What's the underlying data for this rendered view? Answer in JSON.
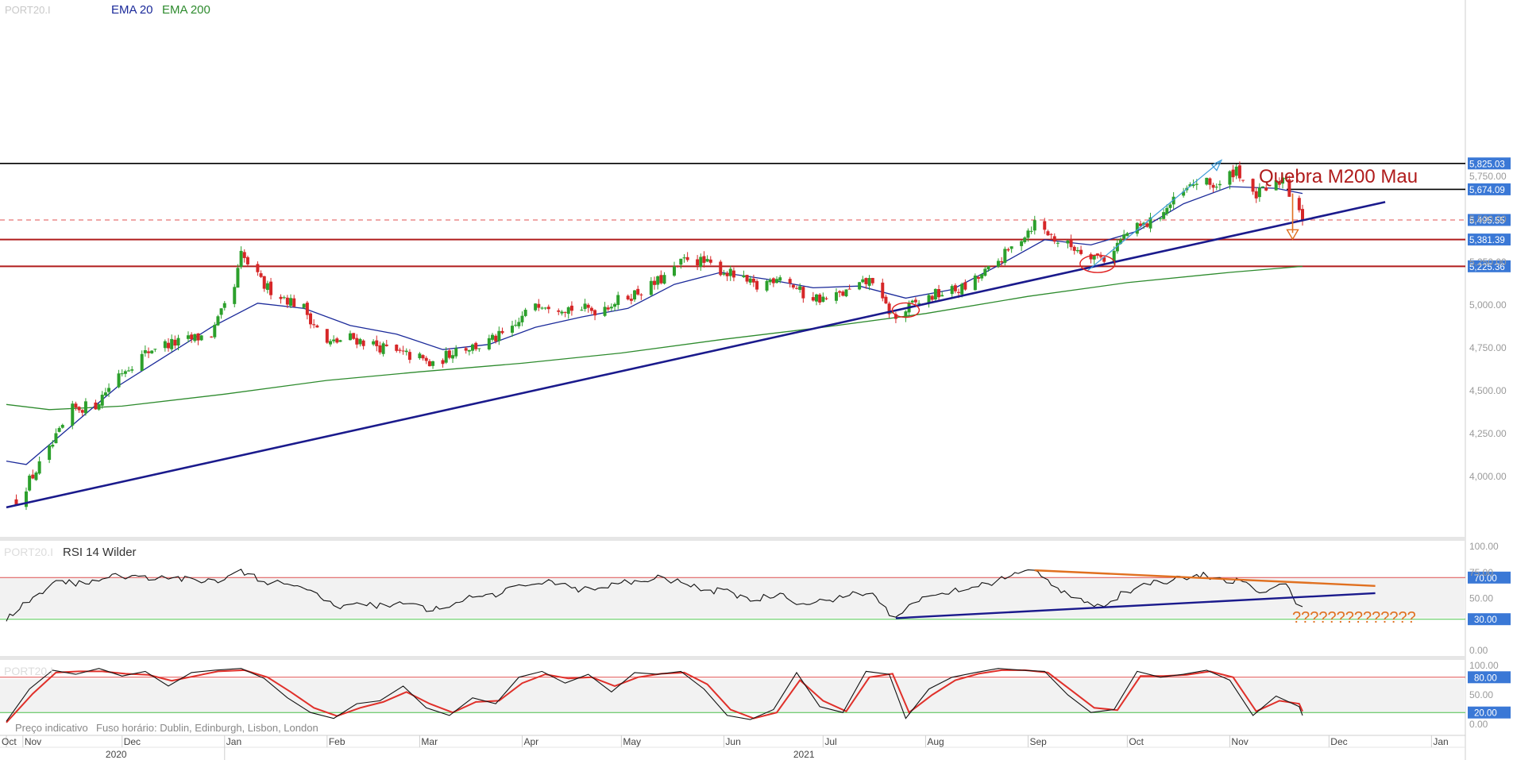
{
  "main": {
    "legend_symbol": "PORT20.I",
    "legend_ema20": "EMA 20",
    "legend_ema200": "EMA 200",
    "annotation_text": "Quebra M200 Mau"
  },
  "rsi": {
    "legend_symbol": "PORT20.I",
    "legend_label": "RSI 14 Wilder",
    "question_text": "??????????????"
  },
  "stoch": {
    "legend_symbol": "PORT20.I"
  },
  "footer": {
    "indicative": "Preço indicativo",
    "timezone": "Fuso horário: Dublin, Edinburgh, Lisbon, London"
  },
  "colors": {
    "up": "#2ca02c",
    "down": "#d62728",
    "ema20": "#1b2a9a",
    "ema200": "#2e8b2e",
    "trendline": "#1a1a8c",
    "support": "#b01c1c",
    "orange": "#e07020",
    "label_bg": "#3a78d6"
  },
  "chart_data": [
    {
      "type": "candlestick",
      "title": "",
      "ylim": [
        3800,
        5860
      ],
      "yticks": [
        "4,000.00",
        "4,250.00",
        "4,500.00",
        "4,750.00",
        "5,000.00",
        "5,250.00",
        "5,500.00",
        "5,750.00"
      ],
      "price_labels": [
        {
          "label": "5,825.03",
          "value": 5825.03,
          "style": "black"
        },
        {
          "label": "5,674.09",
          "value": 5674.09,
          "style": "black"
        },
        {
          "label": "5,495.55",
          "value": 5495.55,
          "style": "dashed-red"
        },
        {
          "label": "5,381.39",
          "value": 5381.39,
          "style": "red"
        },
        {
          "label": "5,225.36",
          "value": 5225.36,
          "style": "red"
        }
      ],
      "x_months": [
        "Oct",
        "Nov",
        "Dec",
        "Jan",
        "Feb",
        "Mar",
        "Apr",
        "May",
        "Jun",
        "Jul",
        "Aug",
        "Sep",
        "Oct",
        "Nov",
        "Dec",
        "Jan"
      ],
      "x_years": [
        "2020",
        "2021"
      ],
      "close_path": [
        [
          "2020-10-30",
          3860
        ],
        [
          "2020-11-09",
          4150
        ],
        [
          "2020-11-16",
          4390
        ],
        [
          "2020-11-23",
          4420
        ],
        [
          "2020-11-30",
          4600
        ],
        [
          "2020-12-11",
          4760
        ],
        [
          "2020-12-18",
          4780
        ],
        [
          "2020-12-28",
          4830
        ],
        [
          "2021-01-04",
          5100
        ],
        [
          "2021-01-06",
          5290
        ],
        [
          "2021-01-13",
          5110
        ],
        [
          "2021-01-25",
          4980
        ],
        [
          "2021-02-01",
          4770
        ],
        [
          "2021-02-08",
          4810
        ],
        [
          "2021-02-15",
          4770
        ],
        [
          "2021-02-22",
          4720
        ],
        [
          "2021-03-01",
          4690
        ],
        [
          "2021-03-05",
          4640
        ],
        [
          "2021-03-12",
          4750
        ],
        [
          "2021-03-19",
          4760
        ],
        [
          "2021-03-29",
          4850
        ],
        [
          "2021-04-05",
          5020
        ],
        [
          "2021-04-16",
          4980
        ],
        [
          "2021-04-23",
          4970
        ],
        [
          "2021-05-03",
          5050
        ],
        [
          "2021-05-10",
          5110
        ],
        [
          "2021-05-17",
          5200
        ],
        [
          "2021-05-21",
          5280
        ],
        [
          "2021-05-28",
          5230
        ],
        [
          "2021-06-04",
          5170
        ],
        [
          "2021-06-11",
          5100
        ],
        [
          "2021-06-18",
          5180
        ],
        [
          "2021-06-25",
          5060
        ],
        [
          "2021-07-02",
          5030
        ],
        [
          "2021-07-09",
          5080
        ],
        [
          "2021-07-16",
          5150
        ],
        [
          "2021-07-19",
          5010
        ],
        [
          "2021-07-23",
          4920
        ],
        [
          "2021-07-28",
          5000
        ],
        [
          "2021-08-04",
          5060
        ],
        [
          "2021-08-13",
          5100
        ],
        [
          "2021-08-20",
          5200
        ],
        [
          "2021-08-27",
          5330
        ],
        [
          "2021-09-03",
          5480
        ],
        [
          "2021-09-10",
          5370
        ],
        [
          "2021-09-17",
          5320
        ],
        [
          "2021-09-24",
          5270
        ],
        [
          "2021-10-01",
          5420
        ],
        [
          "2021-10-08",
          5480
        ],
        [
          "2021-10-15",
          5600
        ],
        [
          "2021-10-22",
          5720
        ],
        [
          "2021-10-29",
          5690
        ],
        [
          "2021-11-03",
          5800
        ],
        [
          "2021-11-08",
          5630
        ],
        [
          "2021-11-15",
          5700
        ],
        [
          "2021-11-18",
          5760
        ],
        [
          "2021-11-19",
          5650
        ],
        [
          "2021-11-22",
          5570
        ],
        [
          "2021-11-23",
          5500
        ]
      ],
      "ema20": [
        [
          "2020-10-27",
          4090
        ],
        [
          "2020-11-02",
          4070
        ],
        [
          "2020-11-16",
          4300
        ],
        [
          "2020-11-30",
          4530
        ],
        [
          "2020-12-14",
          4700
        ],
        [
          "2020-12-28",
          4870
        ],
        [
          "2021-01-11",
          5010
        ],
        [
          "2021-01-25",
          4980
        ],
        [
          "2021-02-08",
          4880
        ],
        [
          "2021-02-22",
          4830
        ],
        [
          "2021-03-08",
          4740
        ],
        [
          "2021-03-22",
          4770
        ],
        [
          "2021-04-05",
          4870
        ],
        [
          "2021-04-19",
          4930
        ],
        [
          "2021-05-03",
          4980
        ],
        [
          "2021-05-17",
          5120
        ],
        [
          "2021-05-31",
          5190
        ],
        [
          "2021-06-14",
          5150
        ],
        [
          "2021-06-28",
          5100
        ],
        [
          "2021-07-12",
          5110
        ],
        [
          "2021-07-26",
          5040
        ],
        [
          "2021-08-09",
          5090
        ],
        [
          "2021-08-23",
          5230
        ],
        [
          "2021-09-06",
          5380
        ],
        [
          "2021-09-20",
          5350
        ],
        [
          "2021-10-04",
          5430
        ],
        [
          "2021-10-18",
          5590
        ],
        [
          "2021-11-01",
          5690
        ],
        [
          "2021-11-15",
          5680
        ],
        [
          "2021-11-23",
          5650
        ]
      ],
      "ema200": [
        [
          "2020-10-27",
          4420
        ],
        [
          "2020-11-09",
          4390
        ],
        [
          "2020-12-01",
          4410
        ],
        [
          "2021-01-01",
          4480
        ],
        [
          "2021-02-01",
          4560
        ],
        [
          "2021-03-01",
          4610
        ],
        [
          "2021-04-01",
          4660
        ],
        [
          "2021-05-01",
          4720
        ],
        [
          "2021-06-01",
          4800
        ],
        [
          "2021-07-01",
          4870
        ],
        [
          "2021-08-01",
          4950
        ],
        [
          "2021-09-01",
          5050
        ],
        [
          "2021-10-01",
          5130
        ],
        [
          "2021-11-01",
          5190
        ],
        [
          "2021-11-23",
          5225
        ]
      ],
      "trendline": [
        [
          "2020-10-27",
          3820
        ],
        [
          "2021-12-18",
          5600
        ]
      ],
      "blue_arrow": [
        [
          "2021-09-19",
          5200
        ],
        [
          "2021-10-29",
          5835
        ]
      ],
      "orange_arrow": [
        [
          "2021-11-20",
          5650
        ],
        [
          "2021-11-20",
          5420
        ]
      ],
      "circles": [
        [
          "2021-07-26",
          4970
        ],
        [
          "2021-09-22",
          5240
        ]
      ]
    },
    {
      "type": "line",
      "name": "RSI 14 Wilder",
      "ylim": [
        0,
        100
      ],
      "yticks": [
        "100.00",
        "75.00",
        "50.00",
        "0.00"
      ],
      "levels": [
        {
          "label": "70.00",
          "value": 70
        },
        {
          "label": "30.00",
          "value": 30
        }
      ],
      "values": [
        [
          "2020-10-27",
          28
        ],
        [
          "2020-11-06",
          55
        ],
        [
          "2020-11-13",
          67
        ],
        [
          "2020-11-20",
          64
        ],
        [
          "2020-11-27",
          70
        ],
        [
          "2020-12-04",
          72
        ],
        [
          "2020-12-11",
          68
        ],
        [
          "2020-12-18",
          71
        ],
        [
          "2020-12-25",
          65
        ],
        [
          "2021-01-01",
          68
        ],
        [
          "2021-01-06",
          78
        ],
        [
          "2021-01-13",
          66
        ],
        [
          "2021-01-22",
          62
        ],
        [
          "2021-01-29",
          55
        ],
        [
          "2021-02-05",
          40
        ],
        [
          "2021-02-12",
          44
        ],
        [
          "2021-02-19",
          43
        ],
        [
          "2021-02-26",
          45
        ],
        [
          "2021-03-05",
          38
        ],
        [
          "2021-03-12",
          46
        ],
        [
          "2021-03-19",
          52
        ],
        [
          "2021-03-26",
          55
        ],
        [
          "2021-04-02",
          62
        ],
        [
          "2021-04-09",
          68
        ],
        [
          "2021-04-16",
          60
        ],
        [
          "2021-04-23",
          58
        ],
        [
          "2021-04-30",
          64
        ],
        [
          "2021-05-07",
          66
        ],
        [
          "2021-05-14",
          70
        ],
        [
          "2021-05-21",
          63
        ],
        [
          "2021-05-28",
          58
        ],
        [
          "2021-06-04",
          55
        ],
        [
          "2021-06-11",
          48
        ],
        [
          "2021-06-18",
          55
        ],
        [
          "2021-06-25",
          45
        ],
        [
          "2021-07-02",
          48
        ],
        [
          "2021-07-09",
          53
        ],
        [
          "2021-07-16",
          55
        ],
        [
          "2021-07-23",
          32
        ],
        [
          "2021-07-30",
          47
        ],
        [
          "2021-08-06",
          55
        ],
        [
          "2021-08-13",
          58
        ],
        [
          "2021-08-20",
          64
        ],
        [
          "2021-08-27",
          72
        ],
        [
          "2021-09-03",
          77
        ],
        [
          "2021-09-10",
          60
        ],
        [
          "2021-09-17",
          50
        ],
        [
          "2021-09-24",
          42
        ],
        [
          "2021-10-01",
          56
        ],
        [
          "2021-10-08",
          63
        ],
        [
          "2021-10-15",
          68
        ],
        [
          "2021-10-22",
          73
        ],
        [
          "2021-10-29",
          70
        ],
        [
          "2021-11-05",
          66
        ],
        [
          "2021-11-12",
          56
        ],
        [
          "2021-11-18",
          64
        ],
        [
          "2021-11-23",
          42
        ]
      ],
      "support_line": [
        [
          "2021-07-23",
          31
        ],
        [
          "2021-12-15",
          55
        ]
      ],
      "resistance_line": [
        [
          "2021-09-03",
          77
        ],
        [
          "2021-12-15",
          62
        ]
      ]
    },
    {
      "type": "line",
      "name": "Stochastic",
      "ylim": [
        0,
        100
      ],
      "yticks": [
        "100.00",
        "50.00",
        "0.00"
      ],
      "levels": [
        {
          "label": "80.00",
          "value": 80
        },
        {
          "label": "20.00",
          "value": 20
        }
      ],
      "k": [
        [
          "2020-10-27",
          5
        ],
        [
          "2020-11-03",
          60
        ],
        [
          "2020-11-10",
          92
        ],
        [
          "2020-11-17",
          85
        ],
        [
          "2020-11-24",
          95
        ],
        [
          "2020-12-01",
          82
        ],
        [
          "2020-12-08",
          90
        ],
        [
          "2020-12-15",
          65
        ],
        [
          "2020-12-22",
          88
        ],
        [
          "2020-12-29",
          92
        ],
        [
          "2021-01-06",
          95
        ],
        [
          "2021-01-13",
          78
        ],
        [
          "2021-01-20",
          45
        ],
        [
          "2021-01-27",
          20
        ],
        [
          "2021-02-03",
          10
        ],
        [
          "2021-02-10",
          35
        ],
        [
          "2021-02-17",
          40
        ],
        [
          "2021-02-24",
          65
        ],
        [
          "2021-03-03",
          28
        ],
        [
          "2021-03-10",
          15
        ],
        [
          "2021-03-17",
          45
        ],
        [
          "2021-03-24",
          35
        ],
        [
          "2021-03-31",
          80
        ],
        [
          "2021-04-07",
          90
        ],
        [
          "2021-04-14",
          70
        ],
        [
          "2021-04-21",
          85
        ],
        [
          "2021-04-28",
          55
        ],
        [
          "2021-05-05",
          88
        ],
        [
          "2021-05-12",
          85
        ],
        [
          "2021-05-19",
          90
        ],
        [
          "2021-05-26",
          60
        ],
        [
          "2021-06-02",
          15
        ],
        [
          "2021-06-09",
          8
        ],
        [
          "2021-06-16",
          25
        ],
        [
          "2021-06-23",
          88
        ],
        [
          "2021-06-30",
          30
        ],
        [
          "2021-07-07",
          20
        ],
        [
          "2021-07-14",
          90
        ],
        [
          "2021-07-21",
          85
        ],
        [
          "2021-07-26",
          10
        ],
        [
          "2021-08-02",
          60
        ],
        [
          "2021-08-09",
          80
        ],
        [
          "2021-08-16",
          88
        ],
        [
          "2021-08-23",
          95
        ],
        [
          "2021-08-30",
          92
        ],
        [
          "2021-09-06",
          90
        ],
        [
          "2021-09-13",
          50
        ],
        [
          "2021-09-20",
          20
        ],
        [
          "2021-09-27",
          25
        ],
        [
          "2021-10-04",
          90
        ],
        [
          "2021-10-11",
          80
        ],
        [
          "2021-10-18",
          85
        ],
        [
          "2021-10-25",
          92
        ],
        [
          "2021-11-01",
          75
        ],
        [
          "2021-11-08",
          15
        ],
        [
          "2021-11-15",
          48
        ],
        [
          "2021-11-22",
          30
        ],
        [
          "2021-11-23",
          15
        ]
      ],
      "d": [
        [
          "2020-10-27",
          3
        ],
        [
          "2020-11-04",
          52
        ],
        [
          "2020-11-11",
          88
        ],
        [
          "2020-11-18",
          90
        ],
        [
          "2020-11-25",
          90
        ],
        [
          "2020-12-02",
          86
        ],
        [
          "2020-12-09",
          84
        ],
        [
          "2020-12-16",
          74
        ],
        [
          "2020-12-23",
          82
        ],
        [
          "2020-12-30",
          90
        ],
        [
          "2021-01-07",
          92
        ],
        [
          "2021-01-14",
          80
        ],
        [
          "2021-01-21",
          55
        ],
        [
          "2021-01-28",
          28
        ],
        [
          "2021-02-04",
          14
        ],
        [
          "2021-02-11",
          28
        ],
        [
          "2021-02-18",
          38
        ],
        [
          "2021-02-25",
          55
        ],
        [
          "2021-03-04",
          35
        ],
        [
          "2021-03-11",
          20
        ],
        [
          "2021-03-18",
          38
        ],
        [
          "2021-03-25",
          40
        ],
        [
          "2021-04-01",
          70
        ],
        [
          "2021-04-08",
          85
        ],
        [
          "2021-04-15",
          78
        ],
        [
          "2021-04-22",
          80
        ],
        [
          "2021-04-29",
          65
        ],
        [
          "2021-05-06",
          80
        ],
        [
          "2021-05-13",
          86
        ],
        [
          "2021-05-20",
          88
        ],
        [
          "2021-05-27",
          68
        ],
        [
          "2021-06-03",
          25
        ],
        [
          "2021-06-10",
          10
        ],
        [
          "2021-06-17",
          20
        ],
        [
          "2021-06-24",
          75
        ],
        [
          "2021-07-01",
          40
        ],
        [
          "2021-07-08",
          22
        ],
        [
          "2021-07-15",
          80
        ],
        [
          "2021-07-22",
          86
        ],
        [
          "2021-07-27",
          20
        ],
        [
          "2021-08-03",
          50
        ],
        [
          "2021-08-10",
          75
        ],
        [
          "2021-08-17",
          86
        ],
        [
          "2021-08-24",
          92
        ],
        [
          "2021-08-31",
          92
        ],
        [
          "2021-09-07",
          88
        ],
        [
          "2021-09-14",
          58
        ],
        [
          "2021-09-21",
          28
        ],
        [
          "2021-09-28",
          24
        ],
        [
          "2021-10-05",
          82
        ],
        [
          "2021-10-12",
          82
        ],
        [
          "2021-10-19",
          84
        ],
        [
          "2021-10-26",
          90
        ],
        [
          "2021-11-02",
          80
        ],
        [
          "2021-11-09",
          22
        ],
        [
          "2021-11-16",
          40
        ],
        [
          "2021-11-22",
          35
        ],
        [
          "2021-11-23",
          22
        ]
      ]
    }
  ]
}
